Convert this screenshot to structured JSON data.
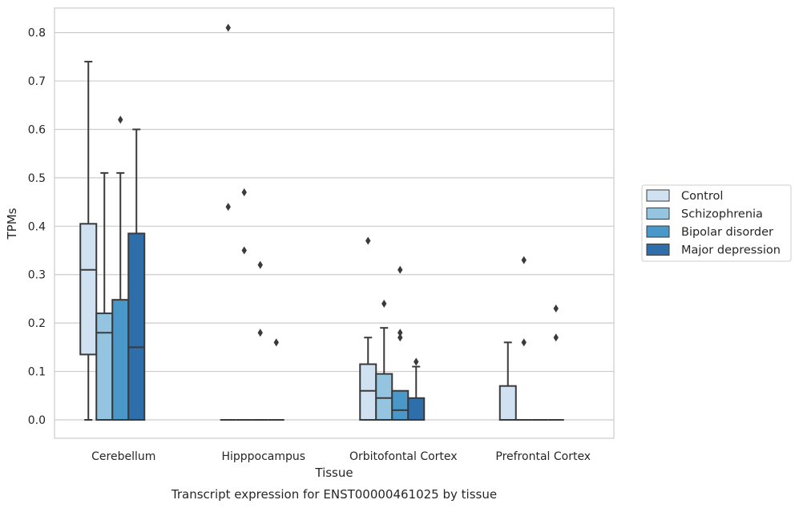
{
  "chart_data": {
    "type": "box",
    "ylabel": "TPMs",
    "xlabel": "Tissue",
    "caption": "Transcript expression for ENST00000461025 by tissue",
    "ylim": [
      -0.04,
      0.85
    ],
    "yticks": [
      0.0,
      0.1,
      0.2,
      0.3,
      0.4,
      0.5,
      0.6,
      0.7,
      0.8
    ],
    "ytick_labels": [
      "0.0",
      "0.1",
      "0.2",
      "0.3",
      "0.4",
      "0.5",
      "0.6",
      "0.7",
      "0.8"
    ],
    "grid": true,
    "legend_position": "right",
    "categories": [
      "Cerebellum",
      "Hipppocampus",
      "Orbitofontal Cortex",
      "Prefrontal Cortex"
    ],
    "series": [
      {
        "name": "Control",
        "color": "#d0e1f2",
        "boxes": [
          {
            "whislo": 0.0,
            "q1": 0.135,
            "med": 0.31,
            "q3": 0.405,
            "whishi": 0.74,
            "fliers": []
          },
          {
            "whislo": 0.0,
            "q1": 0.0,
            "med": 0.0,
            "q3": 0.0,
            "whishi": 0.0,
            "fliers": [
              0.81,
              0.44
            ]
          },
          {
            "whislo": 0.0,
            "q1": 0.0,
            "med": 0.06,
            "q3": 0.115,
            "whishi": 0.17,
            "fliers": [
              0.37
            ]
          },
          {
            "whislo": 0.0,
            "q1": 0.0,
            "med": 0.0,
            "q3": 0.07,
            "whishi": 0.16,
            "fliers": []
          }
        ]
      },
      {
        "name": "Schizophrenia",
        "color": "#94c4df",
        "boxes": [
          {
            "whislo": 0.0,
            "q1": 0.0,
            "med": 0.18,
            "q3": 0.22,
            "whishi": 0.51,
            "fliers": []
          },
          {
            "whislo": 0.0,
            "q1": 0.0,
            "med": 0.0,
            "q3": 0.0,
            "whishi": 0.0,
            "fliers": [
              0.47,
              0.35
            ]
          },
          {
            "whislo": 0.0,
            "q1": 0.0,
            "med": 0.045,
            "q3": 0.095,
            "whishi": 0.19,
            "fliers": [
              0.24
            ]
          },
          {
            "whislo": 0.0,
            "q1": 0.0,
            "med": 0.0,
            "q3": 0.0,
            "whishi": 0.0,
            "fliers": [
              0.33,
              0.16
            ]
          }
        ]
      },
      {
        "name": "Bipolar disorder",
        "color": "#4a98c9",
        "boxes": [
          {
            "whislo": 0.0,
            "q1": 0.0,
            "med": 0.0,
            "q3": 0.248,
            "whishi": 0.51,
            "fliers": [
              0.62
            ]
          },
          {
            "whislo": 0.0,
            "q1": 0.0,
            "med": 0.0,
            "q3": 0.0,
            "whishi": 0.0,
            "fliers": [
              0.32,
              0.18
            ]
          },
          {
            "whislo": 0.0,
            "q1": 0.0,
            "med": 0.02,
            "q3": 0.06,
            "whishi": 0.06,
            "fliers": [
              0.31,
              0.18,
              0.17
            ]
          },
          {
            "whislo": 0.0,
            "q1": 0.0,
            "med": 0.0,
            "q3": 0.0,
            "whishi": 0.0,
            "fliers": []
          }
        ]
      },
      {
        "name": "Major depression",
        "color": "#2e6eab",
        "boxes": [
          {
            "whislo": 0.0,
            "q1": 0.0,
            "med": 0.15,
            "q3": 0.385,
            "whishi": 0.6,
            "fliers": []
          },
          {
            "whislo": 0.0,
            "q1": 0.0,
            "med": 0.0,
            "q3": 0.0,
            "whishi": 0.0,
            "fliers": [
              0.16
            ]
          },
          {
            "whislo": 0.0,
            "q1": 0.0,
            "med": 0.0,
            "q3": 0.045,
            "whishi": 0.11,
            "fliers": [
              0.12
            ]
          },
          {
            "whislo": 0.0,
            "q1": 0.0,
            "med": 0.0,
            "q3": 0.0,
            "whishi": 0.0,
            "fliers": [
              0.23,
              0.17
            ]
          }
        ]
      }
    ]
  }
}
